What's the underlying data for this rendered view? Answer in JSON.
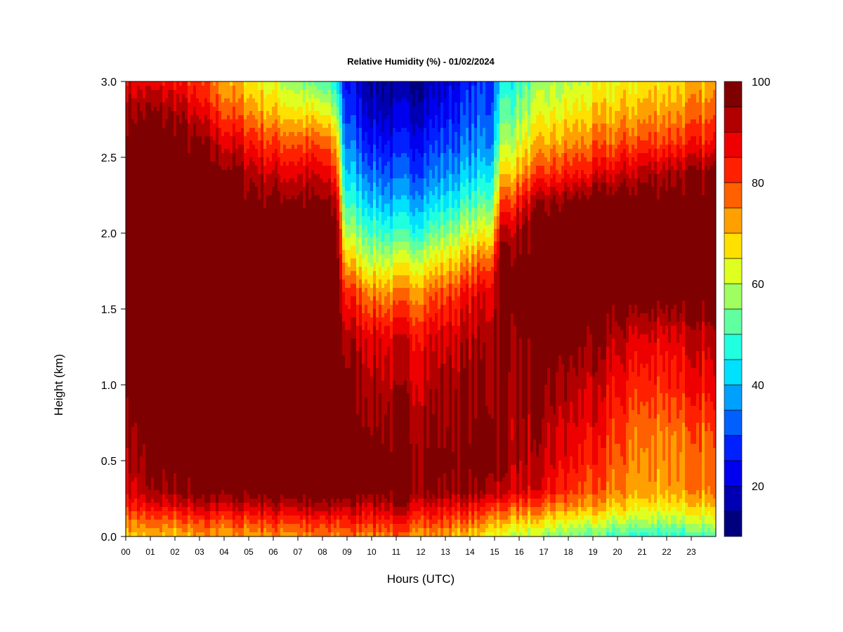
{
  "chart_data": {
    "type": "heatmap",
    "title": "Relative Humidity (%) - 01/02/2024",
    "xlabel": "Hours (UTC)",
    "ylabel": "Height (km)",
    "xlim": [
      0,
      24
    ],
    "ylim": [
      0,
      3
    ],
    "x_tick_labels": [
      "00",
      "01",
      "02",
      "03",
      "04",
      "05",
      "06",
      "07",
      "08",
      "09",
      "10",
      "11",
      "12",
      "13",
      "14",
      "15",
      "16",
      "17",
      "18",
      "19",
      "20",
      "21",
      "22",
      "23"
    ],
    "y_ticks": [
      0,
      0.5,
      1,
      1.5,
      2,
      2.5,
      3
    ],
    "y_tick_labels": [
      "0.0",
      "0.5",
      "1.0",
      "1.5",
      "2.0",
      "2.5",
      "3.0"
    ],
    "colorbar": {
      "range": [
        10,
        100
      ],
      "tick_values": [
        20,
        40,
        60,
        80,
        100
      ],
      "tick_labels": [
        "20",
        "40",
        "60",
        "80",
        "100"
      ],
      "colors": [
        "#00007f",
        "#0000b2",
        "#0000ee",
        "#0020ff",
        "#0060ff",
        "#00a0ff",
        "#00e0ff",
        "#20ffdf",
        "#60ff9f",
        "#9fff60",
        "#dfff20",
        "#ffe000",
        "#ffa000",
        "#ff6000",
        "#ff2000",
        "#ee0000",
        "#b20000",
        "#7f0000"
      ]
    },
    "heights_km": [
      0.0,
      0.1,
      0.2,
      0.3,
      0.5,
      0.7,
      1.0,
      1.3,
      1.6,
      1.8,
      2.0,
      2.2,
      2.4,
      2.6,
      2.8,
      3.0
    ],
    "profiles": [
      {
        "hour": 0,
        "rh": [
          70,
          76,
          84,
          90,
          92,
          96,
          100,
          100,
          100,
          100,
          100,
          100,
          100,
          100,
          96,
          88
        ]
      },
      {
        "hour": 2,
        "rh": [
          70,
          78,
          88,
          96,
          100,
          100,
          100,
          100,
          100,
          100,
          100,
          100,
          100,
          100,
          94,
          86
        ]
      },
      {
        "hour": 4,
        "rh": [
          72,
          80,
          90,
          98,
          100,
          100,
          100,
          100,
          100,
          100,
          100,
          100,
          98,
          90,
          80,
          72
        ]
      },
      {
        "hour": 6,
        "rh": [
          74,
          82,
          92,
          100,
          100,
          100,
          100,
          100,
          100,
          100,
          100,
          98,
          90,
          80,
          70,
          62
        ]
      },
      {
        "hour": 8,
        "rh": [
          74,
          82,
          92,
          100,
          100,
          100,
          100,
          100,
          100,
          100,
          100,
          96,
          88,
          78,
          64,
          50
        ]
      },
      {
        "hour": 8.6,
        "rh": [
          74,
          82,
          92,
          100,
          100,
          100,
          100,
          100,
          100,
          100,
          98,
          92,
          80,
          70,
          56,
          44
        ]
      },
      {
        "hour": 8.9,
        "rh": [
          76,
          84,
          92,
          100,
          100,
          100,
          98,
          94,
          84,
          72,
          60,
          50,
          42,
          36,
          30,
          26
        ]
      },
      {
        "hour": 10,
        "rh": [
          76,
          84,
          92,
          100,
          100,
          98,
          94,
          90,
          76,
          62,
          52,
          42,
          34,
          26,
          20,
          16
        ]
      },
      {
        "hour": 11,
        "rh": [
          76,
          84,
          92,
          98,
          98,
          96,
          92,
          88,
          74,
          62,
          48,
          38,
          30,
          24,
          18,
          14
        ]
      },
      {
        "hour": 12,
        "rh": [
          74,
          82,
          90,
          98,
          98,
          96,
          92,
          88,
          76,
          64,
          50,
          40,
          32,
          26,
          20,
          16
        ]
      },
      {
        "hour": 13,
        "rh": [
          72,
          80,
          88,
          96,
          98,
          96,
          94,
          90,
          80,
          68,
          56,
          44,
          36,
          30,
          24,
          20
        ]
      },
      {
        "hour": 14,
        "rh": [
          68,
          78,
          86,
          96,
          100,
          98,
          96,
          92,
          86,
          74,
          62,
          50,
          40,
          34,
          30,
          26
        ]
      },
      {
        "hour": 14.9,
        "rh": [
          64,
          74,
          84,
          94,
          100,
          98,
          96,
          94,
          90,
          80,
          66,
          54,
          44,
          36,
          32,
          30
        ]
      },
      {
        "hour": 15.2,
        "rh": [
          62,
          72,
          82,
          92,
          96,
          94,
          94,
          96,
          100,
          98,
          90,
          78,
          66,
          56,
          50,
          44
        ]
      },
      {
        "hour": 17,
        "rh": [
          56,
          66,
          76,
          86,
          90,
          92,
          96,
          100,
          100,
          100,
          100,
          94,
          80,
          70,
          62,
          56
        ]
      },
      {
        "hour": 19,
        "rh": [
          52,
          62,
          72,
          78,
          82,
          86,
          90,
          96,
          100,
          100,
          100,
          100,
          86,
          76,
          68,
          62
        ]
      },
      {
        "hour": 21,
        "rh": [
          48,
          58,
          66,
          72,
          74,
          76,
          82,
          88,
          100,
          100,
          100,
          100,
          92,
          80,
          72,
          66
        ]
      },
      {
        "hour": 23.8,
        "rh": [
          50,
          60,
          68,
          74,
          76,
          78,
          86,
          90,
          100,
          100,
          100,
          100,
          96,
          84,
          76,
          70
        ]
      }
    ]
  }
}
